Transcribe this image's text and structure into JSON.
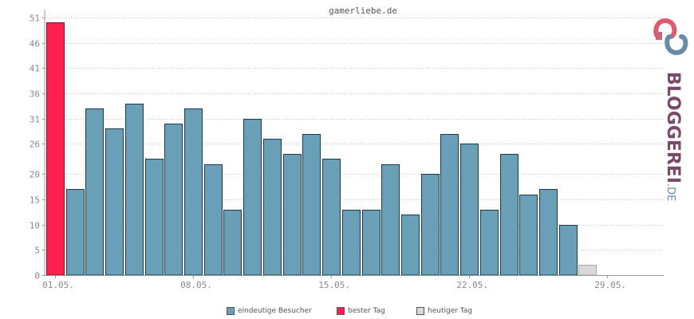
{
  "chart_data": {
    "type": "bar",
    "title": "gamerliebe.de",
    "x_tick_labels": [
      "01.05.",
      "08.05.",
      "15.05.",
      "22.05.",
      "29.05."
    ],
    "x_tick_days": [
      1,
      8,
      15,
      22,
      29
    ],
    "days": [
      1,
      2,
      3,
      4,
      5,
      6,
      7,
      8,
      9,
      10,
      11,
      12,
      13,
      14,
      15,
      16,
      17,
      18,
      19,
      20,
      21,
      22,
      23,
      24,
      25,
      26,
      27,
      28,
      29,
      30,
      31
    ],
    "values": [
      50,
      17,
      33,
      29,
      34,
      23,
      30,
      33,
      22,
      13,
      31,
      27,
      24,
      28,
      23,
      13,
      13,
      22,
      12,
      20,
      28,
      26,
      13,
      24,
      16,
      17,
      10,
      2,
      0,
      0,
      0
    ],
    "best_day_index": 0,
    "today_index": 27,
    "ylim": [
      0,
      51
    ],
    "y_ticks": [
      0,
      5,
      10,
      15,
      20,
      26,
      31,
      36,
      41,
      46,
      51
    ],
    "grid": true,
    "legend_position": "bottom",
    "legend": [
      {
        "label": "eindeutige Besucher",
        "color": "#6a9fb8"
      },
      {
        "label": "bester Tag",
        "color": "#ff2050"
      },
      {
        "label": "heutiger Tag",
        "color": "#d8d8d8"
      }
    ]
  },
  "logo": {
    "text": "BLOGGEREI",
    "suffix": ".DE"
  }
}
